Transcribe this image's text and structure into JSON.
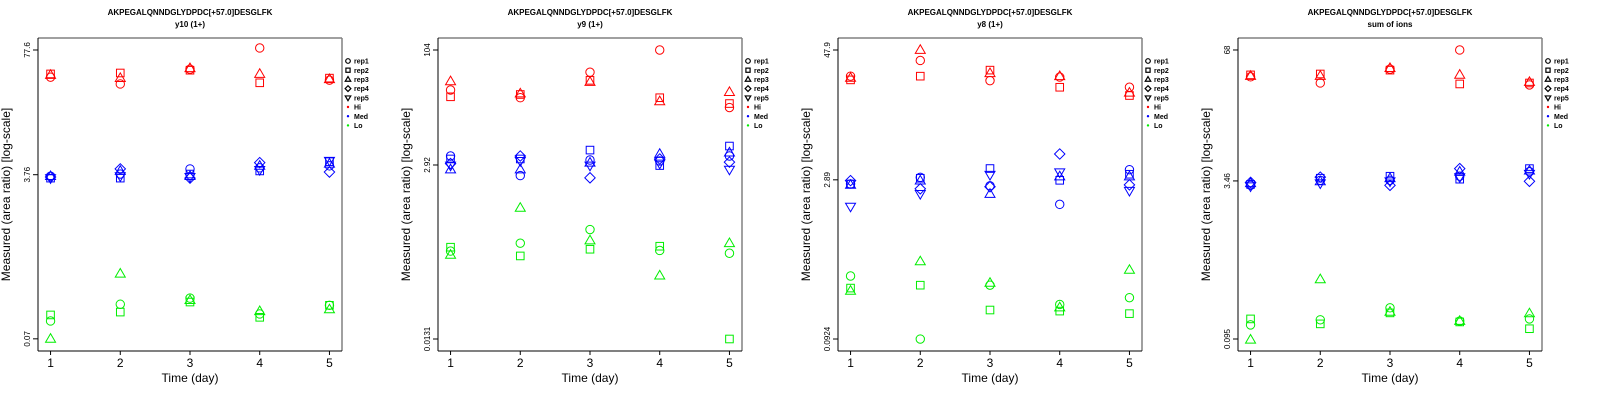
{
  "chart_data": [
    {
      "type": "scatter",
      "title": "AKPEGALQNNDGLYDPDC[+57.0]DESGLFK",
      "subtitle": "y10 (1+)",
      "xlabel": "Time (day)",
      "ylabel": "Measured (area ratio) [log-scale]",
      "yscale": "log",
      "xlim": [
        0.82,
        5.18
      ],
      "ylim": [
        0.0521,
        103.8
      ],
      "xticks": [
        "1",
        "2",
        "3",
        "4",
        "5"
      ],
      "yticks": [
        {
          "value": 77.6,
          "label": "77.6"
        },
        {
          "value": 3.76,
          "label": "3.76"
        },
        {
          "value": 0.07,
          "label": "0.07"
        }
      ],
      "series": [
        {
          "group": "Hi",
          "values": {
            "rep1": [
              40.1,
              34.0,
              48.7,
              81.5,
              37.3
            ],
            "rep2": [
              43.4,
              44.4,
              47.5,
              35.0,
              39.2
            ],
            "rep3": [
              42.3,
              39.2,
              49.8,
              43.4,
              38.2
            ]
          }
        },
        {
          "group": "Med",
          "values": {
            "rep1": [
              3.63,
              3.82,
              4.33,
              4.44,
              4.66
            ],
            "rep2": [
              3.46,
              3.46,
              3.82,
              4.12,
              5.16
            ],
            "rep3": [
              3.63,
              4.12,
              3.63,
              4.66,
              4.91
            ],
            "rep4": [
              3.56,
              4.33,
              3.46,
              5.04,
              4.01
            ],
            "rep5": [
              3.46,
              3.63,
              3.56,
              4.22,
              5.28
            ]
          }
        },
        {
          "group": "Lo",
          "values": {
            "rep1": [
              0.108,
              0.162,
              0.188,
              0.128,
              0.158
            ],
            "rep2": [
              0.125,
              0.134,
              0.171,
              0.118,
              0.158
            ],
            "rep3": [
              0.07,
              0.34,
              0.179,
              0.137,
              0.143
            ]
          }
        }
      ]
    },
    {
      "type": "scatter",
      "title": "AKPEGALQNNDGLYDPDC[+57.0]DESGLFK",
      "subtitle": "y9 (1+)",
      "xlabel": "Time (day)",
      "ylabel": "Measured (area ratio) [log-scale]",
      "yscale": "log",
      "xlim": [
        0.82,
        5.18
      ],
      "ylim": [
        0.00902,
        151
      ],
      "xticks": [
        "1",
        "2",
        "3",
        "4",
        "5"
      ],
      "yticks": [
        {
          "value": 104,
          "label": "104"
        },
        {
          "value": 2.92,
          "label": "2.92"
        },
        {
          "value": 0.0131,
          "label": "0.0131"
        }
      ],
      "series": [
        {
          "group": "Hi",
          "values": {
            "rep1": [
              30.0,
              23.6,
              52.2,
              104,
              17.4
            ],
            "rep2": [
              24.3,
              26.1,
              40.5,
              23.6,
              19.7
            ],
            "rep3": [
              39.3,
              26.9,
              38.5,
              21.1,
              28.1
            ]
          }
        },
        {
          "group": "Med",
          "values": {
            "rep1": [
              3.86,
              2.1,
              3.41,
              3.31,
              3.86
            ],
            "rep2": [
              3.52,
              3.52,
              4.64,
              2.87,
              5.26
            ],
            "rep3": [
              2.54,
              2.54,
              3.13,
              4.11,
              4.29
            ],
            "rep4": [
              3.05,
              3.86,
              1.96,
              3.52,
              3.19
            ],
            "rep5": [
              2.87,
              3.31,
              2.87,
              3.05,
              2.53
            ]
          }
        },
        {
          "group": "Lo",
          "values": {
            "rep1": [
              0.201,
              0.257,
              0.393,
              0.205,
              0.188
            ],
            "rep2": [
              0.227,
              0.173,
              0.213,
              0.234,
              0.0131
            ],
            "rep3": [
              0.179,
              0.77,
              0.28,
              0.094,
              0.257
            ]
          }
        }
      ]
    },
    {
      "type": "scatter",
      "title": "AKPEGALQNNDGLYDPDC[+57.0]DESGLFK",
      "subtitle": "y8 (1+)",
      "xlabel": "Time (day)",
      "ylabel": "Measured (area ratio) [log-scale]",
      "yscale": "log",
      "xlim": [
        0.82,
        5.18
      ],
      "ylim": [
        0.0713,
        62.1
      ],
      "xticks": [
        "1",
        "2",
        "3",
        "4",
        "5"
      ],
      "yticks": [
        {
          "value": 47.9,
          "label": "47.9"
        },
        {
          "value": 2.89,
          "label": "2.89"
        },
        {
          "value": 0.0924,
          "label": "0.0924"
        }
      ],
      "series": [
        {
          "group": "Hi",
          "values": {
            "rep1": [
              27.2,
              38.2,
              24.7,
              26.7,
              21.4
            ],
            "rep2": [
              25.1,
              27.2,
              31.0,
              21.4,
              17.9
            ],
            "rep3": [
              26.2,
              47.9,
              29.0,
              27.2,
              19.0
            ]
          }
        },
        {
          "group": "Med",
          "values": {
            "rep1": [
              2.64,
              3.05,
              2.54,
              1.7,
              3.6
            ],
            "rep2": [
              2.64,
              2.99,
              3.69,
              2.86,
              3.26
            ],
            "rep3": [
              2.59,
              2.84,
              2.13,
              3.11,
              3.11
            ],
            "rep4": [
              2.84,
              2.38,
              2.49,
              5.05,
              2.59
            ],
            "rep5": [
              1.62,
              2.13,
              3.22,
              3.4,
              2.28
            ]
          }
        },
        {
          "group": "Lo",
          "values": {
            "rep1": [
              0.361,
              0.0924,
              0.296,
              0.195,
              0.226
            ],
            "rep2": [
              0.278,
              0.296,
              0.173,
              0.169,
              0.16
            ],
            "rep3": [
              0.262,
              0.495,
              0.311,
              0.183,
              0.412
            ]
          }
        }
      ]
    },
    {
      "type": "scatter",
      "title": "AKPEGALQNNDGLYDPDC[+57.0]DESGLFK",
      "subtitle": "sum of ions",
      "xlabel": "Time (day)",
      "ylabel": "Measured (area ratio) [log-scale]",
      "yscale": "log",
      "xlim": [
        0.82,
        5.18
      ],
      "ylim": [
        0.0723,
        89.3
      ],
      "xticks": [
        "1",
        "2",
        "3",
        "4",
        "5"
      ],
      "yticks": [
        {
          "value": 68,
          "label": "68"
        },
        {
          "value": 3.46,
          "label": "3.46"
        },
        {
          "value": 0.095,
          "label": "0.095"
        }
      ],
      "series": [
        {
          "group": "Hi",
          "values": {
            "rep1": [
              36.9,
              32.1,
              44.0,
              68,
              30.7
            ],
            "rep2": [
              38.6,
              39.4,
              43.0,
              31.4,
              32.1
            ],
            "rep3": [
              37.7,
              37.7,
              45.0,
              38.6,
              32.8
            ]
          }
        },
        {
          "group": "Med",
          "values": {
            "rep1": [
              3.13,
              3.51,
              3.51,
              3.85,
              4.27
            ],
            "rep2": [
              3.2,
              3.68,
              3.85,
              3.6,
              4.58
            ],
            "rep3": [
              3.28,
              3.43,
              3.68,
              4.27,
              4.37
            ],
            "rep4": [
              3.35,
              3.77,
              3.13,
              4.58,
              3.43
            ],
            "rep5": [
              3.06,
              3.28,
              3.43,
              3.77,
              4.07
            ]
          }
        },
        {
          "group": "Lo",
          "values": {
            "rep1": [
              0.131,
              0.147,
              0.193,
              0.143,
              0.15
            ],
            "rep2": [
              0.15,
              0.134,
              0.172,
              0.14,
              0.12
            ],
            "rep3": [
              0.0935,
              0.369,
              0.176,
              0.143,
              0.17
            ]
          }
        }
      ]
    }
  ],
  "x_values": [
    1,
    2,
    3,
    4,
    5
  ],
  "legend": {
    "placement": "right",
    "items": [
      {
        "label": "rep1",
        "shape": "circle"
      },
      {
        "label": "rep2",
        "shape": "square"
      },
      {
        "label": "rep3",
        "shape": "triangle-up"
      },
      {
        "label": "rep4",
        "shape": "diamond"
      },
      {
        "label": "rep5",
        "shape": "triangle-down"
      },
      {
        "label": "Hi",
        "shape": "dot",
        "color": "#ff0000"
      },
      {
        "label": "Med",
        "shape": "dot",
        "color": "#0000ff"
      },
      {
        "label": "Lo",
        "shape": "dot",
        "color": "#00ee00"
      }
    ]
  },
  "colors": {
    "Hi": "#ff0000",
    "Med": "#0000ff",
    "Lo": "#00ee00",
    "axis": "#000000",
    "frame_right": "#808080"
  }
}
